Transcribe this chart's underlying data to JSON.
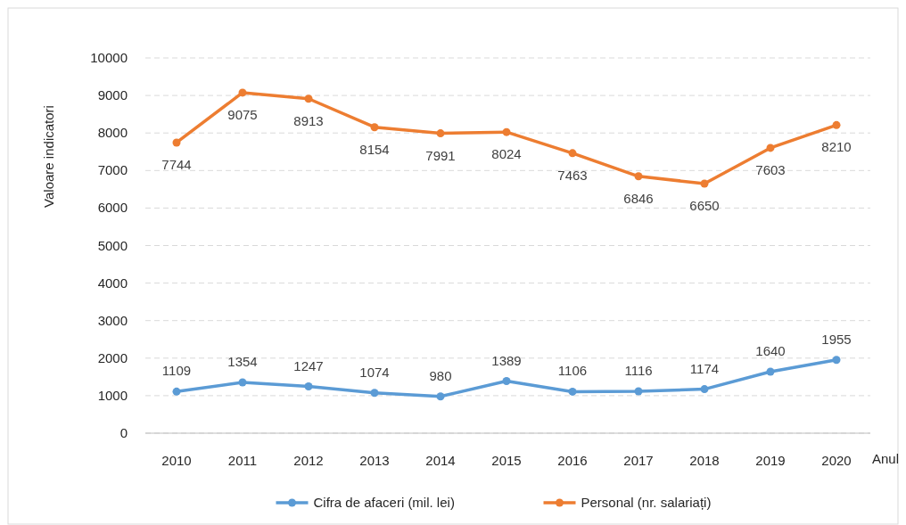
{
  "chart_data": {
    "type": "line",
    "xlabel": "Anul",
    "ylabel": "Valoare indicatori",
    "categories": [
      "2010",
      "2011",
      "2012",
      "2013",
      "2014",
      "2015",
      "2016",
      "2017",
      "2018",
      "2019",
      "2020"
    ],
    "series": [
      {
        "name": "Cifra de afaceri (mil. lei)",
        "color": "#5b9bd5",
        "values": [
          1109,
          1354,
          1247,
          1074,
          980,
          1389,
          1106,
          1116,
          1174,
          1640,
          1955
        ]
      },
      {
        "name": "Personal (nr. salariați)",
        "color": "#ed7d31",
        "values": [
          7744,
          9075,
          8913,
          8154,
          7991,
          8024,
          7463,
          6846,
          6650,
          7603,
          8210
        ]
      }
    ],
    "ylim": [
      0,
      10000
    ],
    "yticks": [
      0,
      1000,
      2000,
      3000,
      4000,
      5000,
      6000,
      7000,
      8000,
      9000,
      10000
    ],
    "grid": "y",
    "legend": "bottom",
    "marker": "circle",
    "line_style": "solid",
    "data_labels": true
  }
}
